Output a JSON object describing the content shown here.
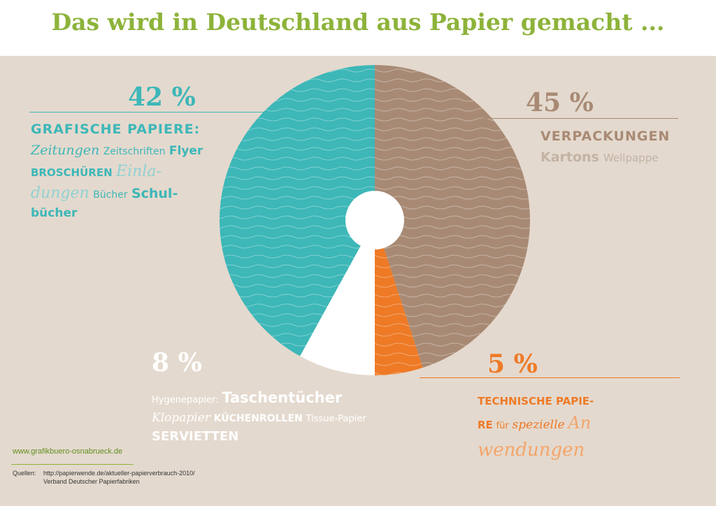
{
  "title": "Das wird in Deutschland aus Papier gemacht ...",
  "chart_data": {
    "type": "pie",
    "categories": [
      "Verpackungen",
      "Technische Papiere",
      "Hygienepapier",
      "Grafische Papiere"
    ],
    "values": [
      45,
      5,
      8,
      42
    ],
    "colors": [
      "#a88a74",
      "#ee7a26",
      "#ffffff",
      "#3db7b8"
    ]
  },
  "labels": {
    "verpackungen": {
      "pct": "45 %",
      "heading": "VERPACKUNGEN",
      "line2a": "Kartons",
      "line2b": "Wellpappe"
    },
    "grafisch": {
      "pct": "42 %",
      "heading": "GRAFISCHE PAPIERE:",
      "w1": "Zeitungen",
      "w2": "Zeitschriften",
      "w3": "Flyer",
      "w4": "BROSCHÜREN",
      "w5": "Einla-",
      "w6": "dungen",
      "w7": "Bücher",
      "w8": "Schul-",
      "w9": "bücher"
    },
    "hygiene": {
      "pct": "8 %",
      "w1": "Hygenepapier:",
      "w2": "Taschentücher",
      "w3": "Klopapier",
      "w4": "KÜCHENROLLEN",
      "w5": "Tissue-Papier",
      "w6": "SERVIETTEN"
    },
    "technisch": {
      "pct": "5 %",
      "w1": "TECHNISCHE PAPIE-",
      "w2": "RE",
      "w3": "für",
      "w4": "spezielle",
      "w5": "An",
      "w6": "wendungen"
    }
  },
  "footer": {
    "website": "www.grafikbuero-osnabrueck.de",
    "sources_label": "Quellen:",
    "source1": "http://papierwende.de/aktueller-papierverbrauch-2010/",
    "source2": "Verband Deutscher Papierfabriken"
  }
}
